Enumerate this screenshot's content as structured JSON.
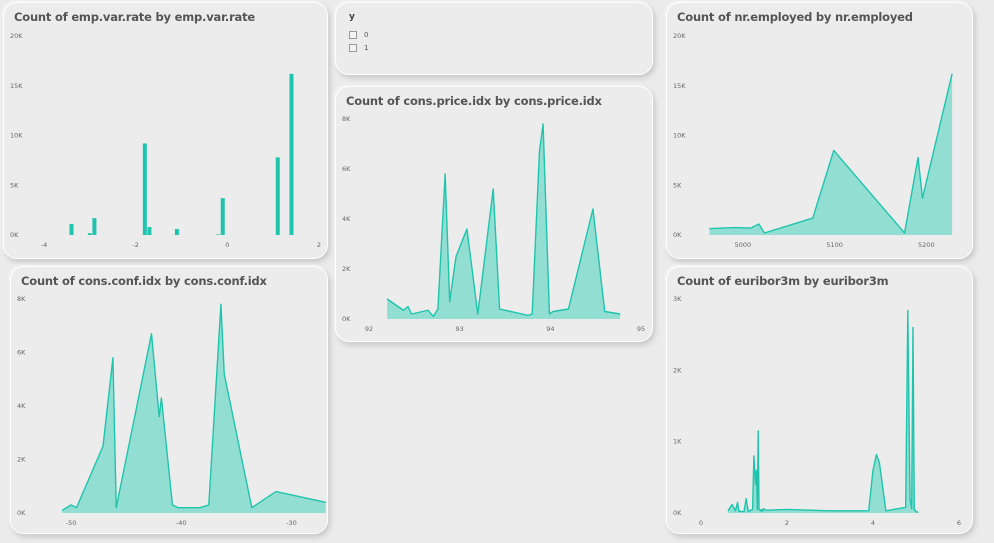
{
  "theme": {
    "accent": "#1fc4ad",
    "fill": "#93ded3",
    "background": "#ebebeb"
  },
  "slicer": {
    "title": "y",
    "options": [
      "0",
      "1"
    ]
  },
  "chart_data": [
    {
      "id": "emp",
      "type": "bar",
      "title": "Count of emp.var.rate by emp.var.rate",
      "xlim": [
        -4,
        2
      ],
      "ylim": [
        0,
        20000
      ],
      "xticks": [
        -4,
        -2,
        0,
        2
      ],
      "xtick_labels": [
        "-4",
        "-2",
        "0",
        "2"
      ],
      "yticks": [
        0,
        5000,
        10000,
        15000,
        20000
      ],
      "ytick_labels": [
        "0K",
        "5K",
        "10K",
        "15K",
        "20K"
      ],
      "x": [
        -3.4,
        -3.0,
        -2.9,
        -1.8,
        -1.7,
        -1.1,
        -0.2,
        -0.1,
        1.1,
        1.4
      ],
      "values": [
        1100,
        180,
        1700,
        9200,
        800,
        600,
        10,
        3700,
        7800,
        16200
      ]
    },
    {
      "id": "price",
      "type": "area",
      "title": "Count of cons.price.idx by cons.price.idx",
      "xlim": [
        92,
        95
      ],
      "ylim": [
        0,
        8000
      ],
      "xticks": [
        92,
        93,
        94,
        95
      ],
      "xtick_labels": [
        "92",
        "93",
        "94",
        "95"
      ],
      "yticks": [
        0,
        2000,
        4000,
        6000,
        8000
      ],
      "ytick_labels": [
        "0K",
        "2K",
        "4K",
        "6K",
        "8K"
      ],
      "x": [
        92.2,
        92.38,
        92.43,
        92.47,
        92.65,
        92.71,
        92.76,
        92.84,
        92.89,
        92.96,
        93.08,
        93.2,
        93.37,
        93.44,
        93.75,
        93.8,
        93.88,
        93.92,
        93.99,
        94.03,
        94.2,
        94.47,
        94.6,
        94.77
      ],
      "values": [
        800,
        350,
        500,
        200,
        350,
        100,
        400,
        5800,
        700,
        2500,
        3600,
        200,
        5200,
        400,
        150,
        200,
        6700,
        7800,
        200,
        300,
        400,
        4400,
        300,
        200
      ]
    },
    {
      "id": "nr",
      "type": "area",
      "title": "Count of nr.employed by nr.employed",
      "xlim": [
        4950,
        5240
      ],
      "ylim": [
        0,
        20000
      ],
      "xticks": [
        5000,
        5100,
        5200
      ],
      "xtick_labels": [
        "5000",
        "5100",
        "5200"
      ],
      "yticks": [
        0,
        5000,
        10000,
        15000,
        20000
      ],
      "ytick_labels": [
        "0K",
        "5K",
        "10K",
        "15K",
        "20K"
      ],
      "x": [
        4963.6,
        4991.6,
        5008.7,
        5017.5,
        5023.5,
        5076.2,
        5099.1,
        5176.3,
        5191.0,
        5195.8,
        5228.1
      ],
      "values": [
        650,
        750,
        700,
        1100,
        200,
        1700,
        8500,
        200,
        7800,
        3700,
        16200
      ]
    },
    {
      "id": "conf",
      "type": "area",
      "title": "Count of cons.conf.idx by cons.conf.idx",
      "xlim": [
        -53,
        -27.5
      ],
      "ylim": [
        0,
        8000
      ],
      "xticks": [
        -50,
        -40,
        -30
      ],
      "xtick_labels": [
        "-50",
        "-40",
        "-30"
      ],
      "yticks": [
        0,
        2000,
        4000,
        6000,
        8000
      ],
      "ytick_labels": [
        "0K",
        "2K",
        "4K",
        "6K",
        "8K"
      ],
      "x": [
        -50.8,
        -50.0,
        -49.5,
        -47.1,
        -46.2,
        -45.9,
        -42.7,
        -42.0,
        -41.8,
        -40.8,
        -40.3,
        -39.8,
        -38.3,
        -37.5,
        -36.4,
        -36.1,
        -33.6,
        -31.4,
        -26.9
      ],
      "values": [
        100,
        300,
        200,
        2500,
        5800,
        200,
        6700,
        3600,
        4300,
        300,
        200,
        200,
        200,
        300,
        7800,
        5200,
        200,
        800,
        400
      ]
    },
    {
      "id": "euribor",
      "type": "area",
      "title": "Count of euribor3m by euribor3m",
      "xlim": [
        0,
        6
      ],
      "ylim": [
        0,
        3000
      ],
      "xticks": [
        0,
        2,
        4,
        6
      ],
      "xtick_labels": [
        "0",
        "2",
        "4",
        "6"
      ],
      "yticks": [
        0,
        1000,
        2000,
        3000
      ],
      "ytick_labels": [
        "0K",
        "1K",
        "2K",
        "3K"
      ],
      "x": [
        0.63,
        0.72,
        0.8,
        0.85,
        0.88,
        0.9,
        0.93,
        1.0,
        1.05,
        1.1,
        1.2,
        1.23,
        1.25,
        1.27,
        1.29,
        1.31,
        1.33,
        1.35,
        1.38,
        1.4,
        1.43,
        1.45,
        1.5,
        2.0,
        3.0,
        3.9,
        4.0,
        4.08,
        4.15,
        4.3,
        4.76,
        4.81,
        4.86,
        4.9,
        4.93,
        4.96,
        4.97,
        5.0,
        5.05
      ],
      "values": [
        30,
        120,
        30,
        150,
        20,
        30,
        20,
        20,
        200,
        20,
        50,
        800,
        580,
        400,
        600,
        50,
        1150,
        50,
        30,
        50,
        20,
        60,
        40,
        50,
        30,
        30,
        600,
        820,
        700,
        30,
        80,
        2840,
        200,
        60,
        2600,
        40,
        50,
        20,
        10
      ]
    }
  ]
}
